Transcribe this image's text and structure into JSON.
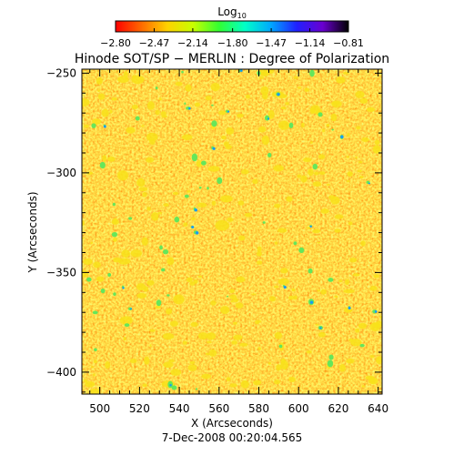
{
  "chart_data": {
    "type": "heatmap",
    "title": "Hinode SOT/SP − MERLIN : Degree of Polarization",
    "xlabel": "X (Arcseconds)",
    "ylabel": "Y (Arcseconds)",
    "xlim": [
      491,
      642
    ],
    "ylim": [
      -411,
      -248
    ],
    "xticks": [
      500,
      520,
      540,
      560,
      580,
      600,
      620,
      640
    ],
    "xtick_labels": [
      "500",
      "520",
      "540",
      "560",
      "580",
      "600",
      "620",
      "640"
    ],
    "yticks": [
      -250,
      -300,
      -350,
      -400
    ],
    "ytick_labels": [
      "−250",
      "−300",
      "−350",
      "−400"
    ],
    "date": "7-Dec-2008 00:20:04.565",
    "colorbar": {
      "label": "Log",
      "label_subscript": "10",
      "range": [
        -2.8,
        -0.81
      ],
      "ticks": [
        -2.8,
        -2.47,
        -2.14,
        -1.8,
        -1.47,
        -1.14,
        -0.81
      ],
      "tick_labels": [
        "−2.80",
        "−2.47",
        "−2.14",
        "−1.80",
        "−1.47",
        "−1.14",
        "−0.81"
      ],
      "colors": [
        "#ff0000",
        "#ff6a00",
        "#ffd200",
        "#c8ff00",
        "#32ff32",
        "#00ffc8",
        "#00a8ff",
        "#2020ff",
        "#6a00d0",
        "#000000"
      ]
    },
    "map_colors": {
      "background": "#f54b1d",
      "low": "#ff2a00",
      "mid": "#ffa018",
      "high": "#f8e21a",
      "strong": "#66e65a",
      "peak": "#1a9cf0"
    },
    "grid": false
  }
}
